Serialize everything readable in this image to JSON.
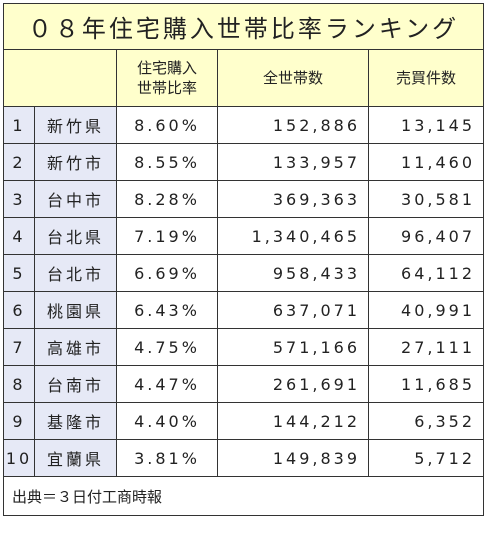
{
  "title": "０８年住宅購入世帯比率ランキング",
  "headers": {
    "rank": "",
    "city": "",
    "rate_line1": "住宅購入",
    "rate_line2": "世帯比率",
    "households": "全世帯数",
    "sales": "売買件数"
  },
  "rows": [
    {
      "rank": "1",
      "city": "新竹県",
      "rate": "8.60%",
      "households": "152,886",
      "sales": "13,145"
    },
    {
      "rank": "2",
      "city": "新竹市",
      "rate": "8.55%",
      "households": "133,957",
      "sales": "11,460"
    },
    {
      "rank": "3",
      "city": "台中市",
      "rate": "8.28%",
      "households": "369,363",
      "sales": "30,581"
    },
    {
      "rank": "4",
      "city": "台北県",
      "rate": "7.19%",
      "households": "1,340,465",
      "sales": "96,407"
    },
    {
      "rank": "5",
      "city": "台北市",
      "rate": "6.69%",
      "households": "958,433",
      "sales": "64,112"
    },
    {
      "rank": "6",
      "city": "桃園県",
      "rate": "6.43%",
      "households": "637,071",
      "sales": "40,991"
    },
    {
      "rank": "7",
      "city": "高雄市",
      "rate": "4.75%",
      "households": "571,166",
      "sales": "27,111"
    },
    {
      "rank": "8",
      "city": "台南市",
      "rate": "4.47%",
      "households": "261,691",
      "sales": "11,685"
    },
    {
      "rank": "9",
      "city": "基隆市",
      "rate": "4.40%",
      "households": "144,212",
      "sales": "6,352"
    },
    {
      "rank": "10",
      "city": "宜蘭県",
      "rate": "3.81%",
      "households": "149,839",
      "sales": "5,712"
    }
  ],
  "source": "出典＝３日付工商時報",
  "colors": {
    "header_bg": "#ffffcc",
    "rank_bg": "#e6e9f6",
    "border": "#333333"
  }
}
